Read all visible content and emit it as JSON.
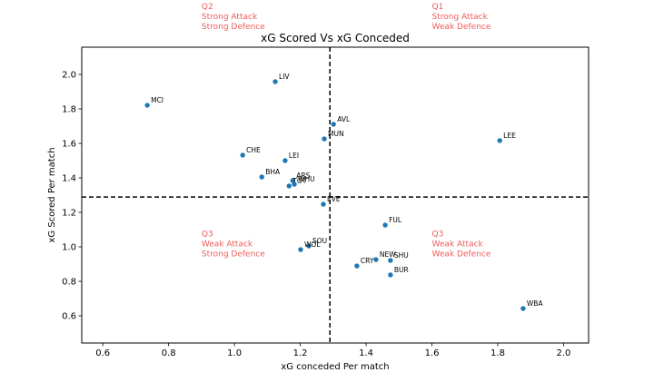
{
  "chart_data": {
    "type": "scatter",
    "title": "xG Scored Vs xG Conceded",
    "xlabel": "xG conceded Per match",
    "ylabel": "xG Scored Per match",
    "xlim": [
      0.536,
      2.076
    ],
    "ylim": [
      0.442,
      2.158
    ],
    "xticks": [
      0.6,
      0.8,
      1.0,
      1.2,
      1.4,
      1.6,
      1.8,
      2.0
    ],
    "xtick_labels": [
      "0.6",
      "0.8",
      "1.0",
      "1.2",
      "1.4",
      "1.6",
      "1.8",
      "2.0"
    ],
    "yticks": [
      0.6,
      0.8,
      1.0,
      1.2,
      1.4,
      1.6,
      1.8,
      2.0
    ],
    "ytick_labels": [
      "0.6",
      "0.8",
      "1.0",
      "1.2",
      "1.4",
      "1.6",
      "1.8",
      "2.0"
    ],
    "grid": false,
    "marker_color": "#1f77b4",
    "reference_lines": {
      "vertical_x": 1.29,
      "horizontal_y": 1.289,
      "style": "dashed",
      "color": "#000000"
    },
    "points": [
      {
        "label": "MCI",
        "x": 0.735,
        "y": 1.821
      },
      {
        "label": "LIV",
        "x": 1.124,
        "y": 1.958
      },
      {
        "label": "AVL",
        "x": 1.301,
        "y": 1.711
      },
      {
        "label": "MUN",
        "x": 1.273,
        "y": 1.626
      },
      {
        "label": "LEE",
        "x": 1.806,
        "y": 1.616
      },
      {
        "label": "CHE",
        "x": 1.025,
        "y": 1.532
      },
      {
        "label": "LEI",
        "x": 1.154,
        "y": 1.5
      },
      {
        "label": "BHA",
        "x": 1.083,
        "y": 1.405
      },
      {
        "label": "ARS",
        "x": 1.177,
        "y": 1.384
      },
      {
        "label": "TOT",
        "x": 1.166,
        "y": 1.353
      },
      {
        "label": "WHU",
        "x": 1.182,
        "y": 1.363
      },
      {
        "label": "EVE",
        "x": 1.27,
        "y": 1.247
      },
      {
        "label": "FUL",
        "x": 1.458,
        "y": 1.126
      },
      {
        "label": "SOU",
        "x": 1.226,
        "y": 1.005
      },
      {
        "label": "WOL",
        "x": 1.201,
        "y": 0.984
      },
      {
        "label": "CRY",
        "x": 1.372,
        "y": 0.889
      },
      {
        "label": "NEW",
        "x": 1.43,
        "y": 0.926
      },
      {
        "label": "SHU",
        "x": 1.474,
        "y": 0.921
      },
      {
        "label": "BUR",
        "x": 1.474,
        "y": 0.837
      },
      {
        "label": "WBA",
        "x": 1.877,
        "y": 0.642
      }
    ],
    "annotations": [
      {
        "id": "q2",
        "lines": [
          "Q2",
          "Strong Attack",
          "Strong Defence"
        ],
        "x": 0.9,
        "y": 2.38,
        "color": "#f05a5a"
      },
      {
        "id": "q1",
        "lines": [
          "Q1",
          "Strong Attack",
          "Weak Defence"
        ],
        "x": 1.6,
        "y": 2.38,
        "color": "#f05a5a"
      },
      {
        "id": "q3-left",
        "lines": [
          "Q3",
          "Weak Attack",
          "Strong Defence"
        ],
        "x": 0.9,
        "y": 1.06,
        "color": "#f05a5a"
      },
      {
        "id": "q3-right",
        "lines": [
          "Q3",
          "Weak Attack",
          "Weak Defence"
        ],
        "x": 1.6,
        "y": 1.06,
        "color": "#f05a5a"
      }
    ]
  }
}
